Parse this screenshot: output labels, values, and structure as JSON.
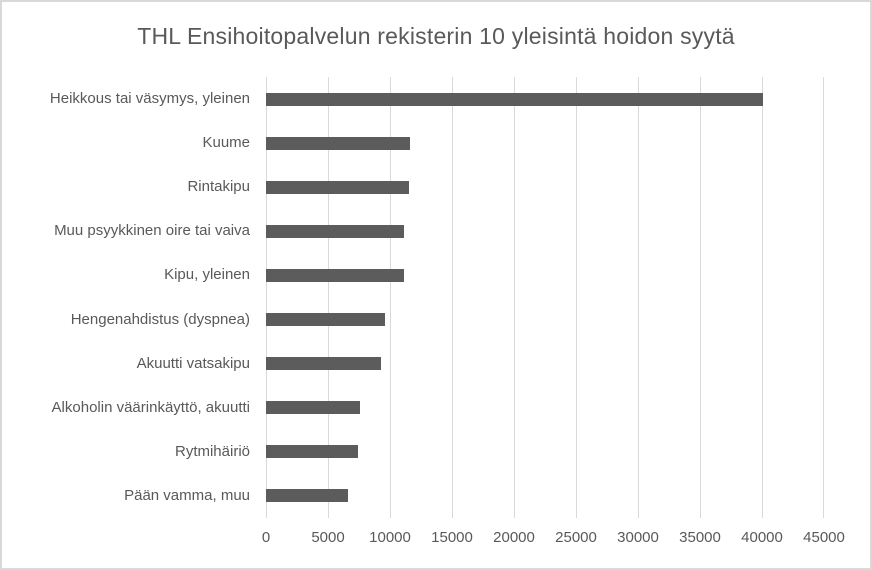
{
  "chart_data": {
    "type": "bar",
    "orientation": "horizontal",
    "title": "THL Ensihoitopalvelun rekisterin 10 yleisintä hoidon syytä",
    "categories": [
      "Heikkous tai väsymys, yleinen",
      "Kuume",
      "Rintakipu",
      "Muu psyykkinen oire tai vaiva",
      "Kipu, yleinen",
      "Hengenahdistus (dyspnea)",
      "Akuutti vatsakipu",
      "Alkoholin väärinkäyttö, akuutti",
      "Rytmihäiriö",
      "Pään vamma, muu"
    ],
    "values": [
      40100,
      11600,
      11500,
      11100,
      11100,
      9600,
      9300,
      7600,
      7400,
      6650
    ],
    "xlabel": "",
    "ylabel": "",
    "xlim": [
      0,
      45000
    ],
    "xtick_step": 5000,
    "x_ticks": [
      "0",
      "5000",
      "10000",
      "15000",
      "20000",
      "25000",
      "30000",
      "35000",
      "40000",
      "45000"
    ],
    "grid": true,
    "legend": "none",
    "colors": {
      "bar": "#5c5c5c",
      "gridline": "#d9d9d9",
      "text": "#595959",
      "frame_border": "#d9d9d9",
      "background": "#ffffff"
    }
  }
}
